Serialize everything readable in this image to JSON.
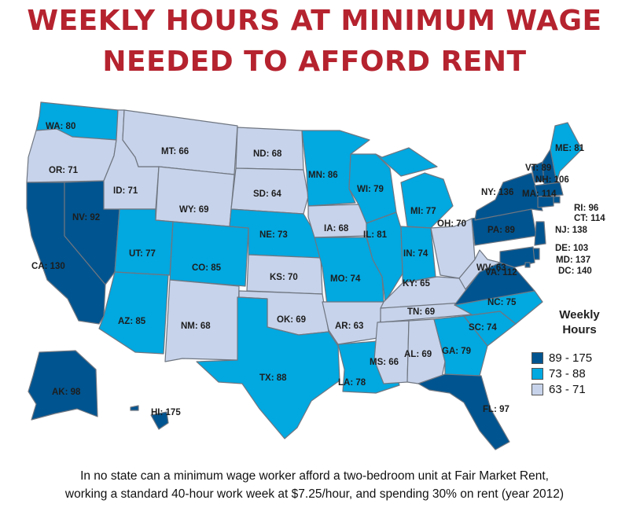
{
  "title_line1": "WEEKLY HOURS AT MINIMUM WAGE",
  "title_line2": "NEEDED TO AFFORD RENT",
  "legend": {
    "title_line1": "Weekly",
    "title_line2": "Hours",
    "classes": [
      {
        "label": "89 - 175",
        "color": "#00548f"
      },
      {
        "label": "73 - 88",
        "color": "#02a8e0"
      },
      {
        "label": "63 - 71",
        "color": "#c7d3ea"
      }
    ]
  },
  "states": [
    {
      "abbr": "WA",
      "hours": 80,
      "label": "WA: 80"
    },
    {
      "abbr": "OR",
      "hours": 71,
      "label": "OR: 71"
    },
    {
      "abbr": "CA",
      "hours": 130,
      "label": "CA: 130"
    },
    {
      "abbr": "NV",
      "hours": 92,
      "label": "NV: 92"
    },
    {
      "abbr": "ID",
      "hours": 71,
      "label": "ID: 71"
    },
    {
      "abbr": "MT",
      "hours": 66,
      "label": "MT: 66"
    },
    {
      "abbr": "WY",
      "hours": 69,
      "label": "WY: 69"
    },
    {
      "abbr": "UT",
      "hours": 77,
      "label": "UT: 77"
    },
    {
      "abbr": "AZ",
      "hours": 85,
      "label": "AZ: 85"
    },
    {
      "abbr": "CO",
      "hours": 85,
      "label": "CO: 85"
    },
    {
      "abbr": "NM",
      "hours": 68,
      "label": "NM: 68"
    },
    {
      "abbr": "ND",
      "hours": 68,
      "label": "ND: 68"
    },
    {
      "abbr": "SD",
      "hours": 64,
      "label": "SD: 64"
    },
    {
      "abbr": "NE",
      "hours": 73,
      "label": "NE: 73"
    },
    {
      "abbr": "KS",
      "hours": 70,
      "label": "KS: 70"
    },
    {
      "abbr": "OK",
      "hours": 69,
      "label": "OK: 69"
    },
    {
      "abbr": "TX",
      "hours": 88,
      "label": "TX: 88"
    },
    {
      "abbr": "MN",
      "hours": 86,
      "label": "MN: 86"
    },
    {
      "abbr": "IA",
      "hours": 68,
      "label": "IA: 68"
    },
    {
      "abbr": "MO",
      "hours": 74,
      "label": "MO: 74"
    },
    {
      "abbr": "AR",
      "hours": 63,
      "label": "AR: 63"
    },
    {
      "abbr": "LA",
      "hours": 78,
      "label": "LA: 78"
    },
    {
      "abbr": "WI",
      "hours": 79,
      "label": "WI: 79"
    },
    {
      "abbr": "IL",
      "hours": 81,
      "label": "IL: 81"
    },
    {
      "abbr": "MI",
      "hours": 77,
      "label": "MI: 77"
    },
    {
      "abbr": "IN",
      "hours": 74,
      "label": "IN: 74"
    },
    {
      "abbr": "OH",
      "hours": 70,
      "label": "OH: 70"
    },
    {
      "abbr": "KY",
      "hours": 65,
      "label": "KY: 65"
    },
    {
      "abbr": "TN",
      "hours": 69,
      "label": "TN: 69"
    },
    {
      "abbr": "MS",
      "hours": 66,
      "label": "MS: 66"
    },
    {
      "abbr": "AL",
      "hours": 69,
      "label": "AL: 69"
    },
    {
      "abbr": "GA",
      "hours": 79,
      "label": "GA: 79"
    },
    {
      "abbr": "FL",
      "hours": 97,
      "label": "FL: 97"
    },
    {
      "abbr": "SC",
      "hours": 74,
      "label": "SC: 74"
    },
    {
      "abbr": "NC",
      "hours": 75,
      "label": "NC: 75"
    },
    {
      "abbr": "VA",
      "hours": 112,
      "label": "VA: 112"
    },
    {
      "abbr": "WV",
      "hours": 63,
      "label": "WV: 63"
    },
    {
      "abbr": "PA",
      "hours": 89,
      "label": "PA: 89"
    },
    {
      "abbr": "NY",
      "hours": 136,
      "label": "NY: 136"
    },
    {
      "abbr": "VT",
      "hours": 89,
      "label": "VT: 89"
    },
    {
      "abbr": "NH",
      "hours": 106,
      "label": "NH: 106"
    },
    {
      "abbr": "ME",
      "hours": 81,
      "label": "ME: 81"
    },
    {
      "abbr": "MA",
      "hours": 114,
      "label": "MA: 114"
    },
    {
      "abbr": "RI",
      "hours": 96,
      "label": "RI: 96"
    },
    {
      "abbr": "CT",
      "hours": 114,
      "label": "CT: 114"
    },
    {
      "abbr": "NJ",
      "hours": 138,
      "label": "NJ: 138"
    },
    {
      "abbr": "DE",
      "hours": 103,
      "label": "DE: 103"
    },
    {
      "abbr": "MD",
      "hours": 137,
      "label": "MD: 137"
    },
    {
      "abbr": "DC",
      "hours": 140,
      "label": "DC: 140"
    },
    {
      "abbr": "AK",
      "hours": 98,
      "label": "AK: 98"
    },
    {
      "abbr": "HI",
      "hours": 175,
      "label": "HI: 175"
    }
  ],
  "footnote_line1": "In no state can a minimum wage worker afford a two-bedroom unit at Fair Market Rent,",
  "footnote_line2": "working a standard 40-hour work week at $7.25/hour, and spending 30% on rent (year 2012)"
}
